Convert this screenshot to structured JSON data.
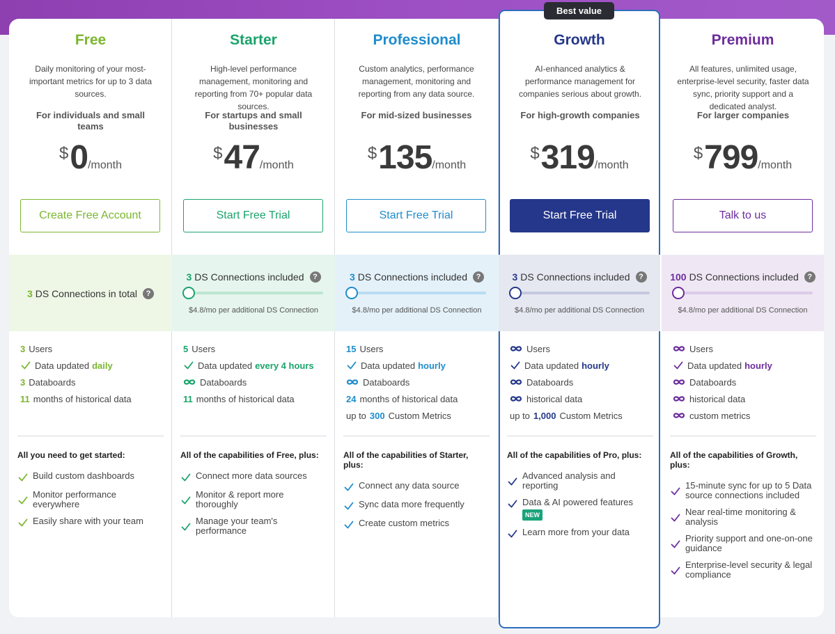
{
  "badge": "Best value",
  "plans": [
    {
      "id": "free",
      "name": "Free",
      "accent": "#7bb62f",
      "description": "Daily monitoring of your most-important metrics for up to 3 data sources.",
      "audience": "For individuals and small teams",
      "currency": "$",
      "price": "0",
      "period": "/month",
      "cta": "Create Free Account",
      "cta_style": "outline",
      "ds_count": "3",
      "ds_text": "DS Connections in total",
      "ds_note": "",
      "band_bg": "#eef6e6",
      "features": [
        {
          "type": "count",
          "value": "3",
          "text": "Users"
        },
        {
          "type": "check",
          "text": "Data updated",
          "emphasis": "daily"
        },
        {
          "type": "count",
          "value": "3",
          "text": "Databoards"
        },
        {
          "type": "count",
          "value": "11",
          "text": "months of historical data"
        }
      ],
      "capabilities_title": "All you need to get started:",
      "capabilities": [
        "Build custom dashboards",
        "Monitor performance everywhere",
        "Easily share with your team"
      ]
    },
    {
      "id": "starter",
      "name": "Starter",
      "accent": "#1aa36b",
      "description": "High-level performance management, monitoring and reporting from 70+ popular data sources.",
      "audience": "For startups and small businesses",
      "currency": "$",
      "price": "47",
      "period": "/month",
      "cta": "Start Free Trial",
      "cta_style": "outline",
      "ds_count": "3",
      "ds_text": "DS Connections included",
      "ds_note": "$4.8/mo per additional DS Connection",
      "band_bg": "#e6f5ee",
      "track": "#bde6d2",
      "features": [
        {
          "type": "count",
          "value": "5",
          "text": "Users"
        },
        {
          "type": "check",
          "text": "Data updated",
          "emphasis": "every 4 hours"
        },
        {
          "type": "infinite",
          "text": "Databoards"
        },
        {
          "type": "count",
          "value": "11",
          "text": "months of historical data"
        }
      ],
      "capabilities_title": "All of the capabilities of Free, plus:",
      "capabilities": [
        "Connect more data sources",
        "Monitor & report more thoroughly",
        "Manage your team's performance"
      ]
    },
    {
      "id": "professional",
      "name": "Professional",
      "accent": "#1e8ccc",
      "description": "Custom analytics, performance management, monitoring and reporting from any data source.",
      "audience": "For mid-sized businesses",
      "currency": "$",
      "price": "135",
      "period": "/month",
      "cta": "Start Free Trial",
      "cta_style": "outline",
      "ds_count": "3",
      "ds_text": "DS Connections included",
      "ds_note": "$4.8/mo per additional DS Connection",
      "band_bg": "#e4f1f9",
      "track": "#b9dcf2",
      "features": [
        {
          "type": "count",
          "value": "15",
          "text": "Users"
        },
        {
          "type": "check",
          "text": "Data updated",
          "emphasis": "hourly"
        },
        {
          "type": "infinite",
          "text": "Databoards"
        },
        {
          "type": "count",
          "value": "24",
          "text": "months of historical data"
        },
        {
          "type": "upto",
          "prefix": "up to",
          "value": "300",
          "text": "Custom Metrics"
        }
      ],
      "capabilities_title": "All of the capabilities of Starter, plus:",
      "capabilities": [
        "Connect any data source",
        "Sync data more frequently",
        "Create custom metrics"
      ]
    },
    {
      "id": "growth",
      "name": "Growth",
      "accent": "#25378a",
      "description": "AI-enhanced analytics & performance management for companies serious about growth.",
      "audience": "For high-growth companies",
      "currency": "$",
      "price": "319",
      "period": "/month",
      "cta": "Start Free Trial",
      "cta_style": "filled",
      "ds_count": "3",
      "ds_text": "DS Connections included",
      "ds_note": "$4.8/mo per additional DS Connection",
      "band_bg": "#e6e8f1",
      "track": "#c5c9de",
      "features": [
        {
          "type": "infinite",
          "text": "Users"
        },
        {
          "type": "check",
          "text": "Data updated",
          "emphasis": "hourly"
        },
        {
          "type": "infinite",
          "text": "Databoards"
        },
        {
          "type": "infinite",
          "text": "historical data"
        },
        {
          "type": "upto",
          "prefix": "up to",
          "value": "1,000",
          "text": "Custom Metrics"
        }
      ],
      "capabilities_title": "All of the capabilities of Pro, plus:",
      "capabilities": [
        "Advanced analysis and reporting",
        "Data & AI powered features",
        "Learn more from your data"
      ],
      "new_tag": "NEW"
    },
    {
      "id": "premium",
      "name": "Premium",
      "accent": "#6c2d9c",
      "description": "All features, unlimited usage, enterprise-level security, faster data sync, priority support and a dedicated analyst.",
      "audience": "For larger companies",
      "currency": "$",
      "price": "799",
      "period": "/month",
      "cta": "Talk to us",
      "cta_style": "outline",
      "ds_count": "100",
      "ds_text": "DS Connections included",
      "ds_note": "$4.8/mo per additional DS Connection",
      "band_bg": "#efe8f4",
      "track": "#dccbe8",
      "features": [
        {
          "type": "infinite",
          "text": "Users"
        },
        {
          "type": "check",
          "text": "Data updated",
          "emphasis": "hourly"
        },
        {
          "type": "infinite",
          "text": "Databoards"
        },
        {
          "type": "infinite",
          "text": "historical data"
        },
        {
          "type": "infinite",
          "text": "custom metrics"
        }
      ],
      "capabilities_title": "All of the capabilities of Growth, plus:",
      "capabilities": [
        "15-minute sync for up to 5 Data source connections included",
        "Near real-time monitoring & analysis",
        "Priority support and one-on-one guidance",
        "Enterprise-level security & legal compliance"
      ]
    }
  ]
}
